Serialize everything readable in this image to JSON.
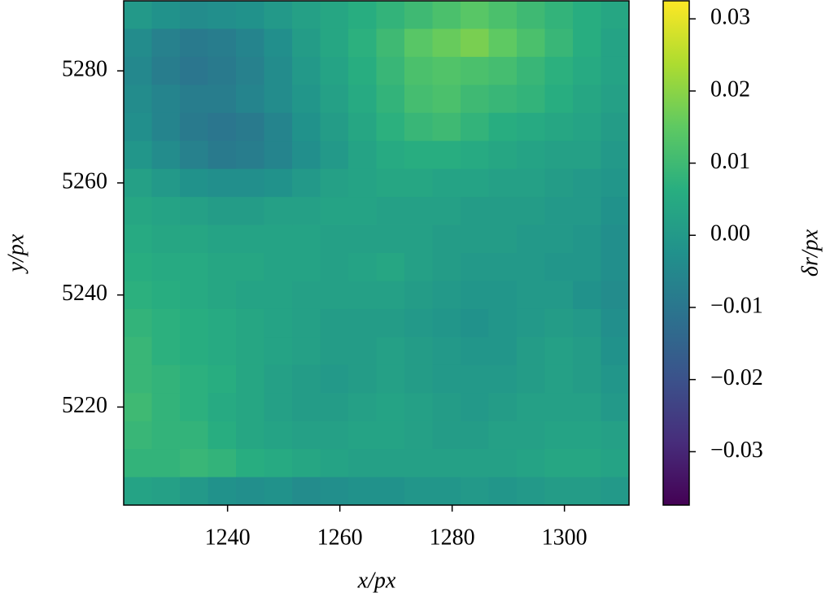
{
  "chart_data": {
    "type": "heatmap",
    "x_label": "x/px",
    "y_label": "y/px",
    "colorbar_label": "δr/px",
    "colormap": "viridis",
    "xlim": [
      1221.5,
      1311.5
    ],
    "ylim": [
      5202.5,
      5292.5
    ],
    "xticks": [
      1240,
      1260,
      1280,
      1300
    ],
    "yticks": [
      5220,
      5240,
      5260,
      5280
    ],
    "clim": [
      -0.0374,
      0.0325
    ],
    "cticks": [
      {
        "value": -0.03,
        "label": "−0.03"
      },
      {
        "value": -0.02,
        "label": "−0.02"
      },
      {
        "value": -0.01,
        "label": "−0.01"
      },
      {
        "value": 0,
        "label": "0.00"
      },
      0.01,
      0.02,
      0.03
    ],
    "z": [
      [
        0.0,
        -0.002,
        -0.004,
        -0.003,
        -0.002,
        0.0,
        0.002,
        0.004,
        0.006,
        0.008,
        0.01,
        0.012,
        0.014,
        0.012,
        0.01,
        0.008,
        0.006,
        0.004
      ],
      [
        -0.004,
        -0.007,
        -0.009,
        -0.008,
        -0.006,
        -0.003,
        0.001,
        0.004,
        0.007,
        0.01,
        0.014,
        0.016,
        0.018,
        0.015,
        0.012,
        0.009,
        0.006,
        0.003
      ],
      [
        -0.005,
        -0.008,
        -0.01,
        -0.009,
        -0.007,
        -0.004,
        0.0,
        0.003,
        0.006,
        0.009,
        0.012,
        0.013,
        0.012,
        0.011,
        0.009,
        0.007,
        0.005,
        0.003
      ],
      [
        -0.004,
        -0.006,
        -0.008,
        -0.008,
        -0.006,
        -0.004,
        -0.001,
        0.002,
        0.005,
        0.008,
        0.011,
        0.012,
        0.01,
        0.009,
        0.008,
        0.006,
        0.004,
        0.002
      ],
      [
        -0.003,
        -0.006,
        -0.009,
        -0.01,
        -0.009,
        -0.006,
        -0.002,
        0.001,
        0.004,
        0.007,
        0.009,
        0.01,
        0.008,
        0.006,
        0.005,
        0.004,
        0.003,
        0.001
      ],
      [
        -0.001,
        -0.004,
        -0.007,
        -0.009,
        -0.008,
        -0.006,
        -0.003,
        0.0,
        0.003,
        0.005,
        0.006,
        0.006,
        0.005,
        0.004,
        0.003,
        0.002,
        0.002,
        0.0
      ],
      [
        0.002,
        0.0,
        -0.002,
        -0.003,
        -0.003,
        -0.002,
        0.0,
        0.002,
        0.003,
        0.004,
        0.004,
        0.003,
        0.003,
        0.002,
        0.002,
        0.001,
        0.0,
        -0.001
      ],
      [
        0.004,
        0.003,
        0.002,
        0.001,
        0.001,
        0.002,
        0.002,
        0.003,
        0.003,
        0.002,
        0.002,
        0.002,
        0.001,
        0.001,
        0.001,
        0.0,
        0.0,
        -0.002
      ],
      [
        0.005,
        0.004,
        0.004,
        0.003,
        0.003,
        0.003,
        0.003,
        0.002,
        0.002,
        0.002,
        0.002,
        0.001,
        0.001,
        0.001,
        0.0,
        0.0,
        -0.001,
        -0.003
      ],
      [
        0.006,
        0.005,
        0.005,
        0.004,
        0.004,
        0.003,
        0.003,
        0.002,
        0.003,
        0.004,
        0.002,
        0.001,
        0.0,
        0.0,
        0.0,
        -0.001,
        -0.001,
        -0.003
      ],
      [
        0.007,
        0.006,
        0.005,
        0.004,
        0.003,
        0.003,
        0.002,
        0.002,
        0.002,
        0.002,
        0.001,
        0.0,
        -0.001,
        -0.001,
        0.0,
        0.0,
        -0.002,
        -0.004
      ],
      [
        0.008,
        0.007,
        0.006,
        0.005,
        0.004,
        0.003,
        0.002,
        0.001,
        0.001,
        0.001,
        0.0,
        -0.001,
        -0.002,
        -0.001,
        0.0,
        0.001,
        0.0,
        -0.003
      ],
      [
        0.009,
        0.007,
        0.006,
        0.005,
        0.004,
        0.003,
        0.002,
        0.001,
        0.001,
        0.002,
        0.001,
        0.0,
        -0.001,
        -0.001,
        0.001,
        0.002,
        0.001,
        -0.002
      ],
      [
        0.009,
        0.008,
        0.007,
        0.006,
        0.004,
        0.002,
        0.001,
        0.0,
        0.001,
        0.002,
        0.001,
        0.0,
        0.0,
        0.0,
        0.001,
        0.002,
        0.001,
        -0.001
      ],
      [
        0.01,
        0.008,
        0.007,
        0.005,
        0.004,
        0.002,
        0.001,
        0.001,
        0.002,
        0.003,
        0.002,
        0.001,
        0.0,
        0.001,
        0.002,
        0.002,
        0.002,
        0.0
      ],
      [
        0.009,
        0.008,
        0.008,
        0.006,
        0.004,
        0.003,
        0.002,
        0.002,
        0.003,
        0.003,
        0.002,
        0.001,
        0.001,
        0.002,
        0.002,
        0.003,
        0.003,
        0.002
      ],
      [
        0.008,
        0.008,
        0.009,
        0.008,
        0.006,
        0.005,
        0.004,
        0.003,
        0.002,
        0.002,
        0.002,
        0.002,
        0.002,
        0.002,
        0.003,
        0.004,
        0.004,
        0.003
      ],
      [
        0.003,
        0.002,
        0.0,
        -0.002,
        -0.003,
        -0.002,
        -0.004,
        -0.003,
        -0.002,
        -0.002,
        -0.001,
        -0.001,
        0.0,
        -0.001,
        0.0,
        0.001,
        0.001,
        0.0
      ]
    ]
  }
}
